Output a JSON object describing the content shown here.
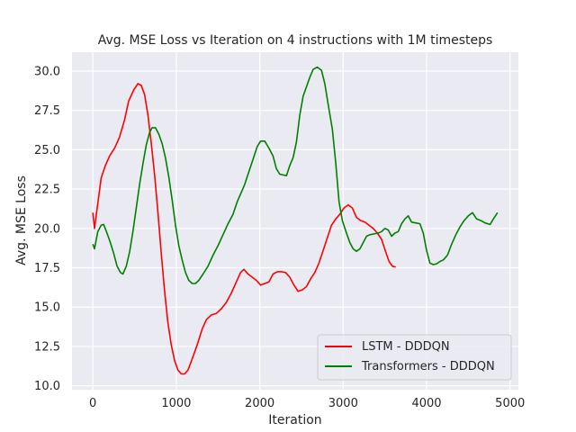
{
  "chart_data": {
    "type": "line",
    "title": "Avg. MSE Loss vs Iteration on 4 instructions with 1M timesteps",
    "xlabel": "Iteration",
    "ylabel": "Avg. MSE Loss",
    "xlim": [
      -250,
      5100
    ],
    "ylim": [
      9.75,
      31.2
    ],
    "xticks": [
      0,
      1000,
      2000,
      3000,
      4000,
      5000
    ],
    "yticks": [
      10.0,
      12.5,
      15.0,
      17.5,
      20.0,
      22.5,
      25.0,
      27.5,
      30.0
    ],
    "xtick_labels": [
      "0",
      "1000",
      "2000",
      "3000",
      "4000",
      "5000"
    ],
    "ytick_labels": [
      "10.0",
      "12.5",
      "15.0",
      "17.5",
      "20.0",
      "22.5",
      "25.0",
      "27.5",
      "30.0"
    ],
    "grid": true,
    "legend_position": "lower-right",
    "background": "#eaeaf2",
    "series": [
      {
        "name": "LSTM - DDDQN",
        "color": "#ff0000",
        "points": [
          [
            0,
            21.0
          ],
          [
            20,
            20.0
          ],
          [
            60,
            21.6
          ],
          [
            100,
            23.2
          ],
          [
            150,
            24.0
          ],
          [
            200,
            24.6
          ],
          [
            260,
            25.1
          ],
          [
            320,
            25.8
          ],
          [
            380,
            26.9
          ],
          [
            430,
            28.1
          ],
          [
            490,
            28.8
          ],
          [
            540,
            29.2
          ],
          [
            580,
            29.1
          ],
          [
            620,
            28.5
          ],
          [
            660,
            27.2
          ],
          [
            700,
            25.4
          ],
          [
            740,
            23.4
          ],
          [
            780,
            21.0
          ],
          [
            820,
            18.4
          ],
          [
            860,
            16.0
          ],
          [
            900,
            14.0
          ],
          [
            940,
            12.6
          ],
          [
            980,
            11.6
          ],
          [
            1020,
            11.0
          ],
          [
            1060,
            10.75
          ],
          [
            1100,
            10.75
          ],
          [
            1140,
            11.0
          ],
          [
            1190,
            11.7
          ],
          [
            1250,
            12.6
          ],
          [
            1310,
            13.6
          ],
          [
            1360,
            14.2
          ],
          [
            1420,
            14.5
          ],
          [
            1480,
            14.6
          ],
          [
            1540,
            14.9
          ],
          [
            1600,
            15.3
          ],
          [
            1660,
            15.9
          ],
          [
            1720,
            16.6
          ],
          [
            1770,
            17.2
          ],
          [
            1810,
            17.4
          ],
          [
            1860,
            17.1
          ],
          [
            1910,
            16.9
          ],
          [
            1960,
            16.7
          ],
          [
            2010,
            16.4
          ],
          [
            2060,
            16.5
          ],
          [
            2110,
            16.6
          ],
          [
            2160,
            17.1
          ],
          [
            2210,
            17.25
          ],
          [
            2260,
            17.25
          ],
          [
            2310,
            17.2
          ],
          [
            2360,
            16.9
          ],
          [
            2410,
            16.4
          ],
          [
            2460,
            16.0
          ],
          [
            2510,
            16.1
          ],
          [
            2560,
            16.3
          ],
          [
            2610,
            16.8
          ],
          [
            2660,
            17.2
          ],
          [
            2710,
            17.8
          ],
          [
            2760,
            18.6
          ],
          [
            2810,
            19.4
          ],
          [
            2860,
            20.2
          ],
          [
            2910,
            20.6
          ],
          [
            2960,
            20.9
          ],
          [
            3010,
            21.3
          ],
          [
            3060,
            21.5
          ],
          [
            3110,
            21.3
          ],
          [
            3160,
            20.7
          ],
          [
            3210,
            20.5
          ],
          [
            3260,
            20.4
          ],
          [
            3310,
            20.2
          ],
          [
            3360,
            20.0
          ],
          [
            3410,
            19.7
          ],
          [
            3460,
            19.3
          ],
          [
            3510,
            18.5
          ],
          [
            3550,
            17.9
          ],
          [
            3590,
            17.6
          ],
          [
            3630,
            17.55
          ]
        ]
      },
      {
        "name": "Transformers - DDDQN",
        "color": "#008000",
        "points": [
          [
            0,
            19.0
          ],
          [
            20,
            18.7
          ],
          [
            60,
            19.8
          ],
          [
            100,
            20.2
          ],
          [
            130,
            20.25
          ],
          [
            170,
            19.7
          ],
          [
            210,
            19.1
          ],
          [
            250,
            18.4
          ],
          [
            290,
            17.6
          ],
          [
            330,
            17.2
          ],
          [
            360,
            17.1
          ],
          [
            400,
            17.6
          ],
          [
            440,
            18.5
          ],
          [
            480,
            19.8
          ],
          [
            520,
            21.3
          ],
          [
            560,
            22.8
          ],
          [
            600,
            24.1
          ],
          [
            640,
            25.3
          ],
          [
            680,
            26.1
          ],
          [
            710,
            26.4
          ],
          [
            750,
            26.4
          ],
          [
            790,
            26.0
          ],
          [
            830,
            25.4
          ],
          [
            870,
            24.5
          ],
          [
            910,
            23.3
          ],
          [
            950,
            21.8
          ],
          [
            990,
            20.2
          ],
          [
            1030,
            18.9
          ],
          [
            1070,
            18.0
          ],
          [
            1110,
            17.2
          ],
          [
            1150,
            16.7
          ],
          [
            1190,
            16.5
          ],
          [
            1230,
            16.5
          ],
          [
            1270,
            16.7
          ],
          [
            1320,
            17.1
          ],
          [
            1380,
            17.6
          ],
          [
            1440,
            18.3
          ],
          [
            1500,
            18.9
          ],
          [
            1560,
            19.6
          ],
          [
            1620,
            20.3
          ],
          [
            1680,
            20.9
          ],
          [
            1730,
            21.7
          ],
          [
            1780,
            22.3
          ],
          [
            1820,
            22.8
          ],
          [
            1870,
            23.6
          ],
          [
            1920,
            24.4
          ],
          [
            1970,
            25.2
          ],
          [
            2010,
            25.55
          ],
          [
            2060,
            25.55
          ],
          [
            2110,
            25.1
          ],
          [
            2160,
            24.6
          ],
          [
            2200,
            23.8
          ],
          [
            2240,
            23.45
          ],
          [
            2280,
            23.4
          ],
          [
            2320,
            23.35
          ],
          [
            2360,
            24.0
          ],
          [
            2400,
            24.5
          ],
          [
            2440,
            25.5
          ],
          [
            2480,
            27.2
          ],
          [
            2520,
            28.4
          ],
          [
            2560,
            29.0
          ],
          [
            2600,
            29.6
          ],
          [
            2640,
            30.1
          ],
          [
            2690,
            30.25
          ],
          [
            2740,
            30.05
          ],
          [
            2780,
            29.2
          ],
          [
            2820,
            27.9
          ],
          [
            2870,
            26.3
          ],
          [
            2910,
            24.2
          ],
          [
            2950,
            21.7
          ],
          [
            2990,
            20.5
          ],
          [
            3040,
            19.7
          ],
          [
            3080,
            19.1
          ],
          [
            3120,
            18.7
          ],
          [
            3160,
            18.55
          ],
          [
            3200,
            18.7
          ],
          [
            3240,
            19.1
          ],
          [
            3280,
            19.5
          ],
          [
            3320,
            19.6
          ],
          [
            3370,
            19.65
          ],
          [
            3420,
            19.7
          ],
          [
            3460,
            19.8
          ],
          [
            3500,
            20.0
          ],
          [
            3540,
            19.9
          ],
          [
            3580,
            19.5
          ],
          [
            3620,
            19.7
          ],
          [
            3660,
            19.8
          ],
          [
            3700,
            20.3
          ],
          [
            3740,
            20.6
          ],
          [
            3780,
            20.8
          ],
          [
            3820,
            20.4
          ],
          [
            3870,
            20.35
          ],
          [
            3920,
            20.3
          ],
          [
            3960,
            19.7
          ],
          [
            4000,
            18.6
          ],
          [
            4040,
            17.8
          ],
          [
            4080,
            17.7
          ],
          [
            4120,
            17.75
          ],
          [
            4160,
            17.9
          ],
          [
            4200,
            18.0
          ],
          [
            4250,
            18.3
          ],
          [
            4300,
            19.0
          ],
          [
            4350,
            19.6
          ],
          [
            4400,
            20.1
          ],
          [
            4450,
            20.5
          ],
          [
            4500,
            20.8
          ],
          [
            4550,
            21.0
          ],
          [
            4600,
            20.6
          ],
          [
            4650,
            20.5
          ],
          [
            4700,
            20.35
          ],
          [
            4760,
            20.25
          ],
          [
            4800,
            20.6
          ],
          [
            4850,
            21.0
          ]
        ]
      }
    ]
  }
}
